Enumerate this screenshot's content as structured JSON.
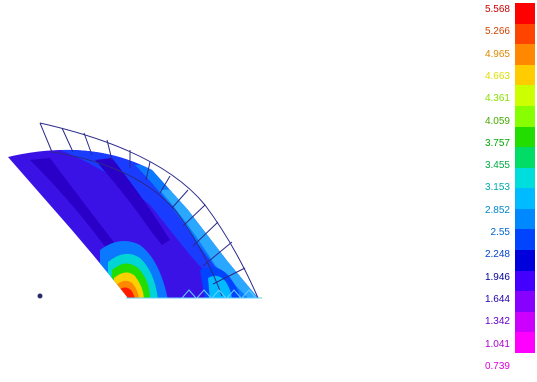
{
  "contour_plot": {
    "legend": {
      "values": [
        "5.568",
        "5.266",
        "4.965",
        "4.663",
        "4.361",
        "4.059",
        "3.757",
        "3.455",
        "3.153",
        "2.852",
        "2.55",
        "2.248",
        "1.946",
        "1.644",
        "1.342",
        "1.041",
        "0.739"
      ],
      "colors": [
        "#ff0000",
        "#ff4400",
        "#ff8800",
        "#ffcc00",
        "#ccff00",
        "#88ff00",
        "#22dd00",
        "#00dd66",
        "#00dddd",
        "#00bbff",
        "#0088ff",
        "#0044ff",
        "#0000dd",
        "#4400ff",
        "#8800ff",
        "#cc00ff",
        "#ff00ff"
      ],
      "label_colors": [
        "#cc0000",
        "#cc4400",
        "#dd8800",
        "#dddd00",
        "#88dd00",
        "#44aa00",
        "#00aa00",
        "#00aa44",
        "#00aaaa",
        "#0088cc",
        "#0066cc",
        "#0044cc",
        "#000099",
        "#2200aa",
        "#6600cc",
        "#aa00cc",
        "#dd00dd"
      ]
    }
  }
}
